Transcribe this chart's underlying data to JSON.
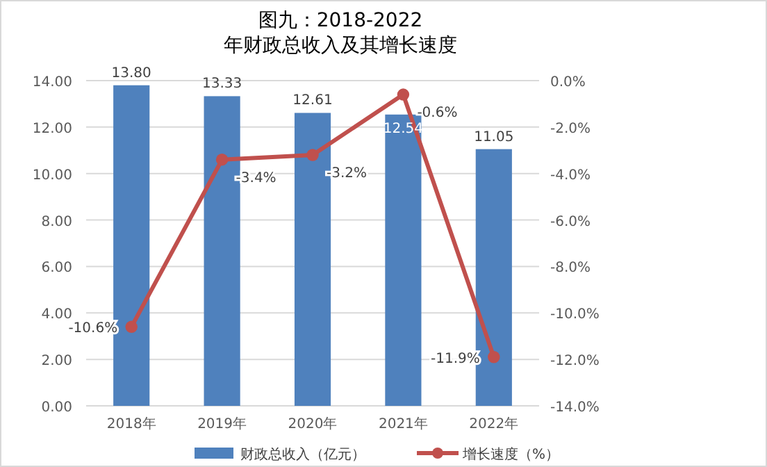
{
  "chart_data": {
    "type": "bar",
    "title": "图九：2018-2022\n年财政总收入及其增长速度",
    "categories": [
      "2018年",
      "2019年",
      "2020年",
      "2021年",
      "2022年"
    ],
    "series": [
      {
        "name": "财政总收入（亿元）",
        "color": "#4f81bd",
        "values": [
          13.8,
          13.33,
          12.61,
          12.54,
          11.05
        ],
        "value_labels": [
          "13.80",
          "13.33",
          "12.61",
          "12.54",
          "11.05"
        ]
      },
      {
        "name": "增长速度（%）",
        "type": "line",
        "axis": "y2",
        "color": "#c0504d",
        "values": [
          -10.6,
          -3.4,
          -3.2,
          -0.6,
          -11.9
        ],
        "value_labels": [
          "-10.6%",
          "-3.4%",
          "-3.2%",
          "-0.6%",
          "-11.9%"
        ]
      }
    ],
    "ylim": [
      0,
      14
    ],
    "yticks": [
      {
        "value": 0,
        "label": "0.00"
      },
      {
        "value": 2,
        "label": "2.00"
      },
      {
        "value": 4,
        "label": "4.00"
      },
      {
        "value": 6,
        "label": "6.00"
      },
      {
        "value": 8,
        "label": "8.00"
      },
      {
        "value": 10,
        "label": "10.00"
      },
      {
        "value": 12,
        "label": "12.00"
      },
      {
        "value": 14,
        "label": "14.00"
      }
    ],
    "y2lim": [
      -14,
      0
    ],
    "y2ticks": [
      {
        "value": -14,
        "label": "-14.0%"
      },
      {
        "value": -12,
        "label": "-12.0%"
      },
      {
        "value": -10,
        "label": "-10.0%"
      },
      {
        "value": -8,
        "label": "-8.0%"
      },
      {
        "value": -6,
        "label": "-6.0%"
      },
      {
        "value": -4,
        "label": "-4.0%"
      },
      {
        "value": -2,
        "label": "-2.0%"
      },
      {
        "value": 0,
        "label": "0.0%"
      }
    ],
    "grid": "y",
    "legend": "bottom",
    "marker": "circle"
  }
}
